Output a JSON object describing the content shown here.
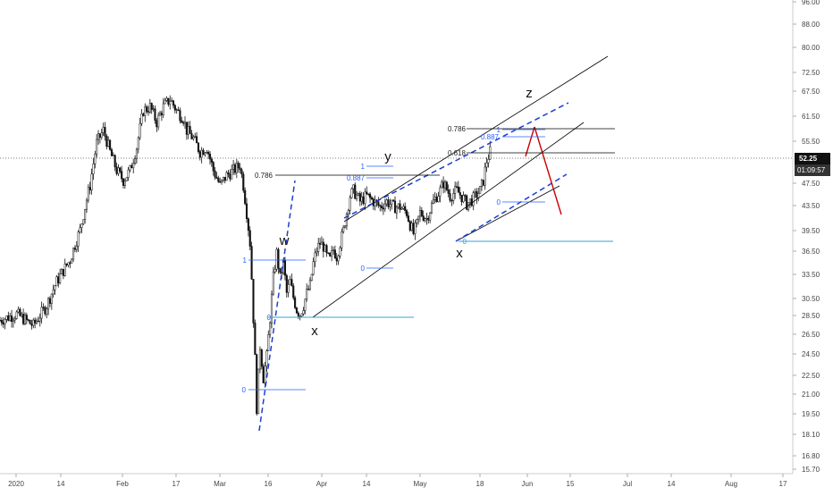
{
  "chart_data": {
    "type": "candlestick",
    "title": "",
    "xlabel": "",
    "ylabel": "",
    "y_scale": "log",
    "ylim": [
      15.2,
      101
    ],
    "x_ticks": [
      "2020",
      "14",
      "Feb",
      "17",
      "Mar",
      "16",
      "Apr",
      "14",
      "May",
      "18",
      "Jun",
      "15",
      "Jul",
      "14",
      "Aug",
      "17"
    ],
    "y_ticks": [
      "96.00",
      "88.00",
      "80.00",
      "72.50",
      "67.50",
      "61.50",
      "55.50",
      "47.50",
      "43.50",
      "39.50",
      "36.50",
      "33.50",
      "30.50",
      "28.50",
      "26.50",
      "24.50",
      "22.50",
      "21.00",
      "19.50",
      "18.10",
      "16.80",
      "15.70"
    ],
    "current_price": "52.25",
    "countdown": "01:09:57",
    "price_path": [
      [
        0,
        27.8
      ],
      [
        5,
        28.5
      ],
      [
        10,
        27.2
      ],
      [
        14,
        29.5
      ],
      [
        17,
        32.5
      ],
      [
        21,
        35.5
      ],
      [
        24,
        40
      ],
      [
        27,
        48
      ],
      [
        29,
        57
      ],
      [
        31,
        60
      ],
      [
        33,
        55
      ],
      [
        35,
        51
      ],
      [
        37,
        49
      ],
      [
        39,
        51
      ],
      [
        41,
        56
      ],
      [
        43,
        65
      ],
      [
        45,
        66
      ],
      [
        47,
        62
      ],
      [
        49,
        66
      ],
      [
        51,
        68
      ],
      [
        53,
        65
      ],
      [
        55,
        63
      ],
      [
        56,
        60
      ],
      [
        58,
        58
      ],
      [
        60,
        55
      ],
      [
        62,
        56
      ],
      [
        64,
        51
      ],
      [
        66,
        48
      ],
      [
        68,
        50
      ],
      [
        70,
        51
      ],
      [
        72,
        52
      ],
      [
        73,
        48
      ],
      [
        75,
        38
      ],
      [
        76,
        28
      ],
      [
        77,
        19.5
      ],
      [
        78,
        25
      ],
      [
        79,
        22
      ],
      [
        80,
        24
      ],
      [
        81,
        28
      ],
      [
        82,
        33
      ],
      [
        83,
        36.5
      ],
      [
        84,
        33
      ],
      [
        85,
        35
      ],
      [
        86,
        31
      ],
      [
        87,
        32.5
      ],
      [
        88,
        30.5
      ],
      [
        89,
        29
      ],
      [
        90,
        28.5
      ],
      [
        91,
        29.5
      ],
      [
        92,
        31
      ],
      [
        93,
        32
      ],
      [
        94,
        35
      ],
      [
        95,
        37
      ],
      [
        96,
        38
      ],
      [
        97,
        37.5
      ],
      [
        98,
        36
      ],
      [
        99,
        35.5
      ],
      [
        100,
        37
      ],
      [
        101,
        36
      ],
      [
        102,
        38
      ],
      [
        103,
        40
      ],
      [
        104,
        43
      ],
      [
        105,
        46
      ],
      [
        106,
        47
      ],
      [
        108,
        45
      ],
      [
        110,
        46
      ],
      [
        112,
        45
      ],
      [
        114,
        44
      ],
      [
        116,
        45
      ],
      [
        118,
        44
      ],
      [
        120,
        44
      ],
      [
        122,
        43
      ],
      [
        123,
        41
      ],
      [
        124,
        39.5
      ],
      [
        125,
        41
      ],
      [
        126,
        43
      ],
      [
        128,
        42
      ],
      [
        130,
        45
      ],
      [
        132,
        47
      ],
      [
        133,
        48.5
      ],
      [
        135,
        46
      ],
      [
        137,
        47
      ],
      [
        139,
        45.5
      ],
      [
        140,
        44.5
      ],
      [
        141,
        45
      ],
      [
        142,
        45.5
      ],
      [
        144,
        47
      ],
      [
        145,
        49
      ],
      [
        146,
        53
      ],
      [
        147,
        55
      ],
      [
        147.5,
        54
      ]
    ],
    "day_ticks_x": [
      0,
      13,
      27,
      48,
      60,
      75,
      91,
      105,
      122,
      136,
      152,
      167,
      182,
      196,
      213,
      227
    ],
    "annotations": {
      "waves": [
        "w",
        "x",
        "y",
        "x",
        "z"
      ],
      "fib_levels": [
        "1",
        "0",
        "0",
        "0.786",
        "1",
        "0.887",
        "0",
        "0.786",
        "1",
        "0.887",
        "0.618",
        "0"
      ]
    },
    "colors": {
      "candles": "#111111",
      "channel": "#000000",
      "dashed_channel": "#1a3fd1",
      "fib_line": "#2962ff",
      "horizontal_cyan": "#3aa0d8",
      "projection": "#cc0000",
      "crosshair": "#555555",
      "price_label_bg": "#111111"
    }
  }
}
